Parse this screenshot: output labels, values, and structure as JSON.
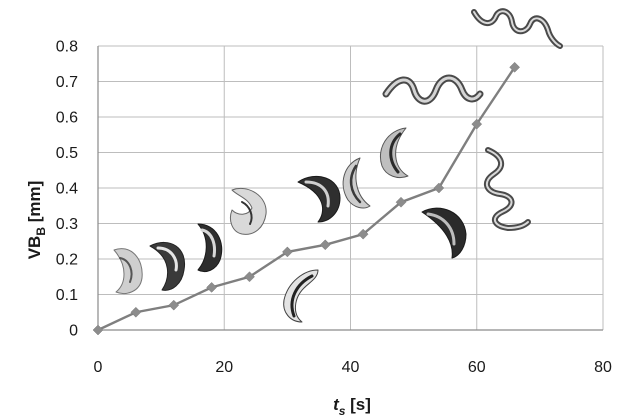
{
  "chart_data": {
    "type": "line",
    "x": [
      0,
      6,
      12,
      18,
      24,
      30,
      36,
      42,
      48,
      54,
      60,
      66
    ],
    "series": [
      {
        "values": [
          0,
          0.05,
          0.07,
          0.12,
          0.15,
          0.22,
          0.24,
          0.27,
          0.36,
          0.4,
          0.58,
          0.74
        ]
      }
    ],
    "xlim": [
      0,
      80
    ],
    "ylim": [
      0,
      0.8
    ],
    "xticks": [
      "0",
      "20",
      "40",
      "60",
      "80"
    ],
    "yticks": [
      "0",
      "0.1",
      "0.2",
      "0.3",
      "0.4",
      "0.5",
      "0.6",
      "0.7",
      "0.8"
    ],
    "xlabel": {
      "base": "t",
      "sub": "s",
      "unit": " [s]"
    },
    "ylabel": {
      "base": "VB",
      "sub": "B",
      "unit": " [mm]"
    },
    "grid": true,
    "legend": "none",
    "annotations": "chip-photo-thumbnails",
    "colors": {
      "line": "#7f7f7f",
      "marker": "#8c8c8c",
      "grid": "#bdbdbd"
    }
  }
}
